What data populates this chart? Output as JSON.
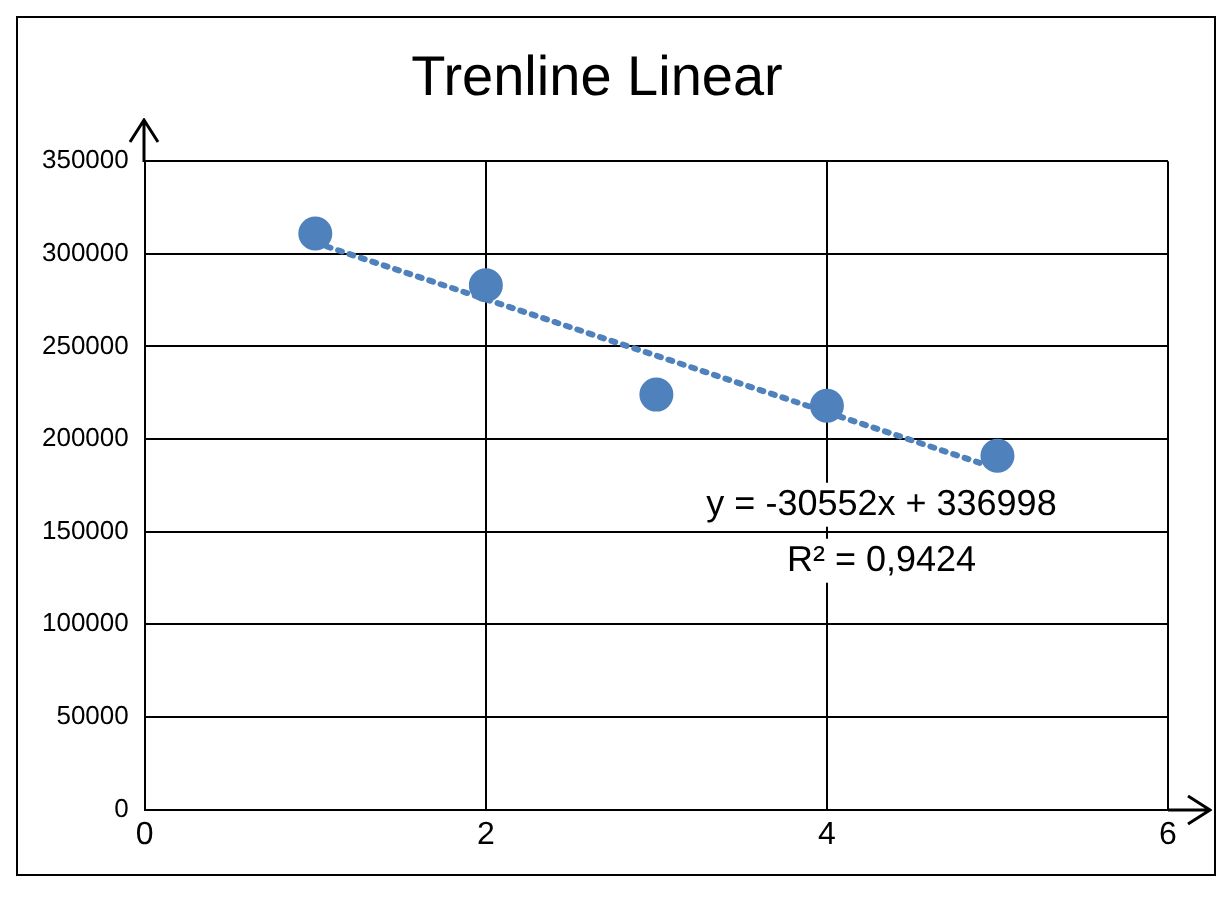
{
  "chart_data": {
    "type": "scatter",
    "title": "Trenline Linear",
    "xlim": [
      0,
      6
    ],
    "xticks": [
      0,
      2,
      4,
      6
    ],
    "ylim": [
      0,
      350000
    ],
    "yticks": [
      0,
      50000,
      100000,
      150000,
      200000,
      250000,
      300000,
      350000
    ],
    "grid": true,
    "legend": false,
    "marker": "circle",
    "series": [
      {
        "color": "#4f81bd",
        "x": [
          1,
          2,
          3,
          4,
          5
        ],
        "values": [
          311000,
          283000,
          224000,
          218000,
          191000
        ]
      },
      {
        "type": "line",
        "color": "#4f81bd",
        "line_style": "dotted",
        "marker": "none",
        "x": [
          1,
          5
        ],
        "values": [
          306000,
          184000
        ]
      }
    ],
    "annotations": [
      "y = -30552x + 336998",
      "R² = 0,9424"
    ]
  }
}
